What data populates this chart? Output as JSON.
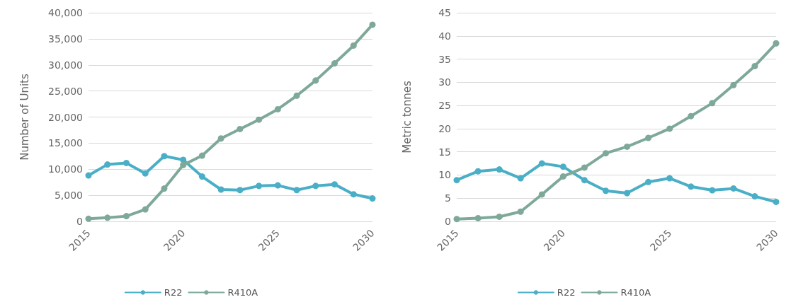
{
  "chart_data": [
    {
      "type": "line",
      "ylabel": "Number of Units",
      "x": [
        2015,
        2016,
        2017,
        2018,
        2019,
        2020,
        2021,
        2022,
        2023,
        2024,
        2025,
        2026,
        2027,
        2028,
        2029,
        2030
      ],
      "xlim": [
        2015,
        2030
      ],
      "xticks": [
        2015,
        2020,
        2025,
        2030
      ],
      "ylim": [
        0,
        40000
      ],
      "yticks": [
        0,
        {
          "value": 5000,
          "label": "5,000"
        },
        {
          "value": 10000,
          "label": "10,000"
        },
        {
          "value": 15000,
          "label": "15,000"
        },
        {
          "value": 20000,
          "label": "20,000"
        },
        {
          "value": 25000,
          "label": "25,000"
        },
        {
          "value": 30000,
          "label": "30,000"
        },
        {
          "value": 35000,
          "label": "35,000"
        },
        {
          "value": 40000,
          "label": "40,000"
        }
      ],
      "series": [
        {
          "name": "R22",
          "color": "#4aafc6",
          "values": [
            8800,
            10900,
            11200,
            9200,
            12500,
            11800,
            8600,
            6100,
            6000,
            6800,
            6900,
            6000,
            6800,
            7100,
            5200,
            4400
          ]
        },
        {
          "name": "R410A",
          "color": "#7ea998",
          "values": [
            500,
            700,
            1000,
            2300,
            6300,
            10800,
            12600,
            15900,
            17700,
            19500,
            21500,
            24100,
            27000,
            30300,
            33700,
            37700
          ]
        }
      ],
      "grid": "y",
      "legend": "bottom",
      "marker": "circle",
      "line_style": "solid"
    },
    {
      "type": "line",
      "ylabel": "Metric tonnes",
      "x": [
        2015,
        2016,
        2017,
        2018,
        2019,
        2020,
        2021,
        2022,
        2023,
        2024,
        2025,
        2026,
        2027,
        2028,
        2029,
        2030
      ],
      "xlim": [
        2015,
        2030
      ],
      "xticks": [
        2015,
        2020,
        2025,
        2030
      ],
      "ylim": [
        0,
        45
      ],
      "yticks": [
        0,
        5,
        10,
        15,
        20,
        25,
        30,
        35,
        40,
        45
      ],
      "series": [
        {
          "name": "R22",
          "color": "#4aafc6",
          "values": [
            8.9,
            10.8,
            11.2,
            9.3,
            12.5,
            11.8,
            8.9,
            6.6,
            6.1,
            8.5,
            9.3,
            7.5,
            6.7,
            7.1,
            5.4,
            4.2
          ]
        },
        {
          "name": "R410A",
          "color": "#7ea998",
          "values": [
            0.5,
            0.7,
            1.0,
            2.1,
            5.8,
            9.7,
            11.6,
            14.7,
            16.1,
            18.0,
            20.0,
            22.7,
            25.5,
            29.4,
            33.5,
            38.4
          ]
        }
      ],
      "grid": "y",
      "legend": "bottom",
      "marker": "circle",
      "line_style": "solid"
    }
  ]
}
